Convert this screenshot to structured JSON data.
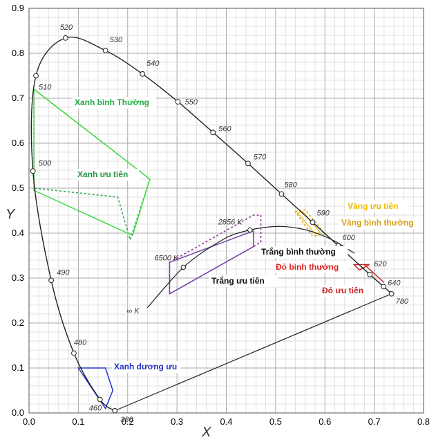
{
  "chart_data": {
    "type": "scatter",
    "title": "",
    "xlabel": "X",
    "ylabel": "Y",
    "xlim": [
      0,
      0.8
    ],
    "ylim": [
      0,
      0.9
    ],
    "xticks": [
      "0.0",
      "0.1",
      "0.2",
      "0.3",
      "0.4",
      "0.5",
      "0.6",
      "0.7",
      "0.8"
    ],
    "yticks": [
      "0.0",
      "0.1",
      "0.2",
      "0.3",
      "0.4",
      "0.5",
      "0.6",
      "0.7",
      "0.8",
      "0.9"
    ],
    "grid": true,
    "spectral_locus": [
      {
        "label": "380",
        "x": 0.174,
        "y": 0.005
      },
      {
        "label": "460",
        "x": 0.144,
        "y": 0.03
      },
      {
        "label": "480",
        "x": 0.091,
        "y": 0.133
      },
      {
        "label": "490",
        "x": 0.045,
        "y": 0.295
      },
      {
        "label": "500",
        "x": 0.008,
        "y": 0.538
      },
      {
        "label": "510",
        "x": 0.014,
        "y": 0.75
      },
      {
        "label": "520",
        "x": 0.074,
        "y": 0.834
      },
      {
        "label": "530",
        "x": 0.155,
        "y": 0.806
      },
      {
        "label": "540",
        "x": 0.23,
        "y": 0.754
      },
      {
        "label": "550",
        "x": 0.302,
        "y": 0.692
      },
      {
        "label": "560",
        "x": 0.373,
        "y": 0.624
      },
      {
        "label": "570",
        "x": 0.444,
        "y": 0.555
      },
      {
        "label": "580",
        "x": 0.512,
        "y": 0.487
      },
      {
        "label": "590",
        "x": 0.575,
        "y": 0.424
      },
      {
        "label": "600",
        "x": 0.627,
        "y": 0.372
      },
      {
        "label": "620",
        "x": 0.691,
        "y": 0.308
      },
      {
        "label": "640",
        "x": 0.719,
        "y": 0.281
      },
      {
        "label": "780",
        "x": 0.735,
        "y": 0.265
      }
    ],
    "planckian_locus": {
      "points": [
        [
          0.24,
          0.234
        ],
        [
          0.283,
          0.289
        ],
        [
          0.313,
          0.324
        ],
        [
          0.345,
          0.352
        ],
        [
          0.38,
          0.377
        ],
        [
          0.41,
          0.395
        ],
        [
          0.448,
          0.407
        ],
        [
          0.48,
          0.413
        ],
        [
          0.51,
          0.415
        ],
        [
          0.545,
          0.411
        ],
        [
          0.58,
          0.401
        ],
        [
          0.62,
          0.382
        ],
        [
          0.66,
          0.355
        ]
      ],
      "markers": [
        {
          "label": "6500 K",
          "x": 0.313,
          "y": 0.324
        },
        {
          "label": "2856 K",
          "x": 0.448,
          "y": 0.407
        },
        {
          "label": "∞ K",
          "x": 0.24,
          "y": 0.234
        }
      ]
    },
    "regions": [
      {
        "name": "Xanh bình Thường",
        "color": "#22aa44",
        "dashed": true,
        "points": [
          [
            0.01,
            0.5
          ],
          [
            0.01,
            0.72
          ],
          [
            0.245,
            0.52
          ],
          [
            0.205,
            0.385
          ],
          [
            0.18,
            0.48
          ]
        ]
      },
      {
        "name": "Xanh ưu tiên",
        "color": "#44dd44",
        "dashed": false,
        "points": [
          [
            0.01,
            0.72
          ],
          [
            0.245,
            0.52
          ],
          [
            0.21,
            0.395
          ],
          [
            0.01,
            0.495
          ]
        ]
      },
      {
        "name": "Trắng bình thường",
        "color": "#993399",
        "dashed": true,
        "points": [
          [
            0.285,
            0.335
          ],
          [
            0.455,
            0.44
          ],
          [
            0.47,
            0.44
          ],
          [
            0.47,
            0.38
          ],
          [
            0.455,
            0.37
          ],
          [
            0.285,
            0.265
          ]
        ]
      },
      {
        "name": "Trắng ưu tiên",
        "color": "#7744aa",
        "dashed": false,
        "points": [
          [
            0.285,
            0.335
          ],
          [
            0.455,
            0.405
          ],
          [
            0.455,
            0.37
          ],
          [
            0.285,
            0.265
          ]
        ]
      },
      {
        "name": "Vàng ưu tiên",
        "color": "#f0c020",
        "dashed": false,
        "points": [
          [
            0.545,
            0.445
          ],
          [
            0.555,
            0.448
          ],
          [
            0.59,
            0.402
          ],
          [
            0.58,
            0.398
          ]
        ]
      },
      {
        "name": "Vàng bình thường",
        "color": "#d4a017",
        "dashed": true,
        "points": [
          [
            0.54,
            0.448
          ],
          [
            0.56,
            0.452
          ],
          [
            0.6,
            0.398
          ],
          [
            0.575,
            0.393
          ]
        ]
      },
      {
        "name": "Đỏ bình thường",
        "color": "#cc2222",
        "dashed": false,
        "points": [
          [
            0.659,
            0.33
          ],
          [
            0.69,
            0.33
          ],
          [
            0.67,
            0.318
          ]
        ]
      },
      {
        "name": "Đỏ ưu tiên",
        "color": "#cc2222",
        "dashed": false,
        "points": [
          [
            0.68,
            0.33
          ],
          [
            0.72,
            0.29
          ]
        ]
      },
      {
        "name": "Xanh dương ưu",
        "color": "#2233cc",
        "dashed": false,
        "points": [
          [
            0.1,
            0.1
          ],
          [
            0.155,
            0.1
          ],
          [
            0.17,
            0.05
          ],
          [
            0.155,
            0.01
          ]
        ]
      }
    ]
  }
}
